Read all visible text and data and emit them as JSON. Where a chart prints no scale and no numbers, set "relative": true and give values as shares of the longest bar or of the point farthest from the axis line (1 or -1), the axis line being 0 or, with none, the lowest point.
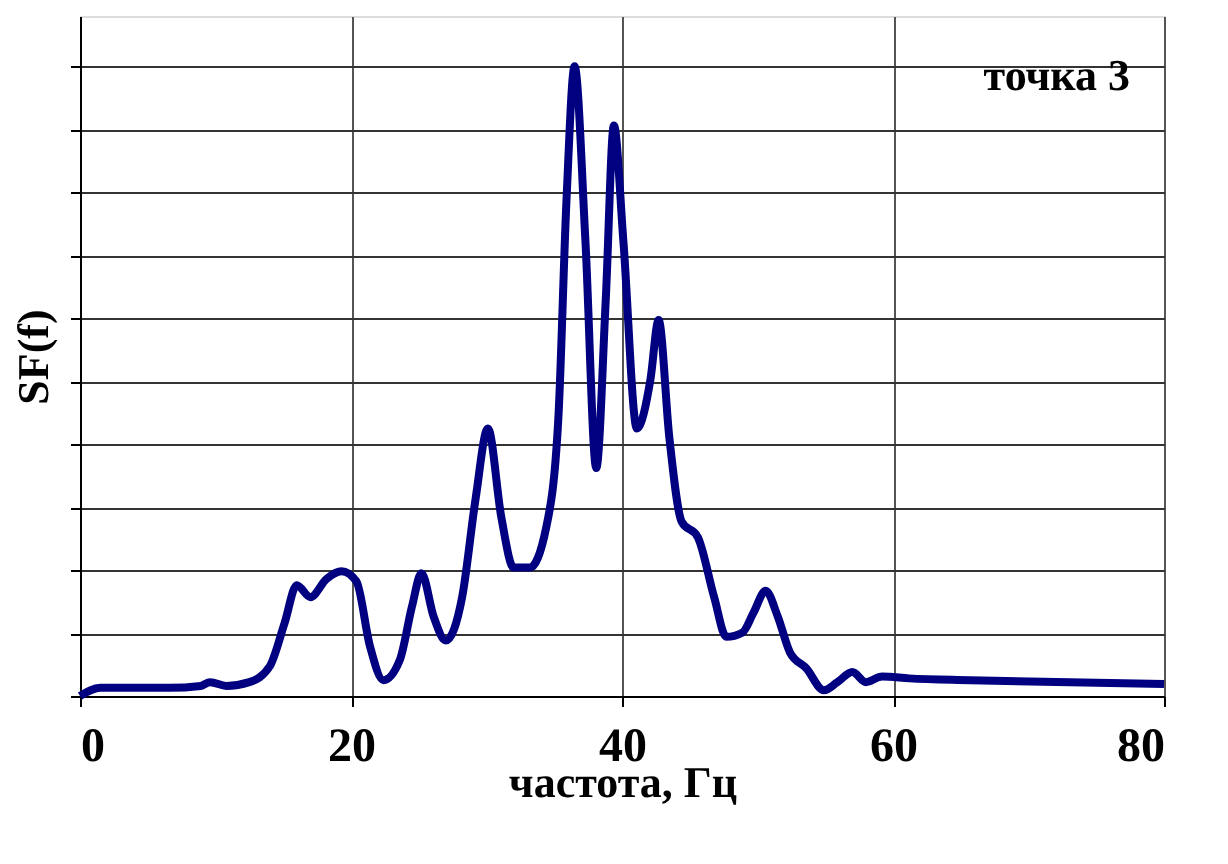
{
  "chart_data": {
    "type": "line",
    "relative": true,
    "xlabel": "частота, Гц",
    "ylabel": "SF(f)",
    "annotations": [
      "точка 3"
    ],
    "xlim": [
      0,
      80
    ],
    "xticks": [
      0,
      20,
      40,
      60,
      80
    ],
    "grid": true,
    "marker": "none",
    "line_style": "solid",
    "series": [
      {
        "color": "#000080",
        "x": [
          0,
          1.5,
          6.6,
          8.9,
          9.6,
          10.8,
          12.5,
          14.0,
          15.1,
          16.0,
          17.0,
          18.2,
          19.3,
          20.4,
          21.4,
          22.4,
          23.6,
          24.5,
          25.2,
          26.1,
          27.0,
          28.2,
          29.2,
          30.1,
          31.1,
          32.0,
          33.2,
          34.4,
          35.3,
          35.9,
          36.5,
          37.3,
          38.1,
          38.8,
          39.4,
          40.1,
          41.1,
          42.1,
          42.7,
          43.5,
          44.4,
          45.6,
          46.8,
          47.7,
          48.9,
          49.7,
          50.6,
          51.5,
          52.4,
          53.6,
          54.9,
          55.9,
          57.0,
          58.0,
          59.2,
          61.2,
          65.7,
          80
        ],
        "values": [
          0,
          0.013,
          0.013,
          0.016,
          0.022,
          0.016,
          0.022,
          0.047,
          0.116,
          0.176,
          0.157,
          0.186,
          0.198,
          0.182,
          0.079,
          0.025,
          0.057,
          0.142,
          0.195,
          0.126,
          0.088,
          0.157,
          0.314,
          0.425,
          0.283,
          0.204,
          0.204,
          0.267,
          0.44,
          0.786,
          1.0,
          0.723,
          0.362,
          0.629,
          0.906,
          0.723,
          0.425,
          0.503,
          0.597,
          0.409,
          0.277,
          0.252,
          0.157,
          0.094,
          0.101,
          0.132,
          0.167,
          0.126,
          0.069,
          0.044,
          0.009,
          0.022,
          0.038,
          0.022,
          0.031,
          0.028,
          0.025,
          0.019
        ]
      }
    ]
  }
}
